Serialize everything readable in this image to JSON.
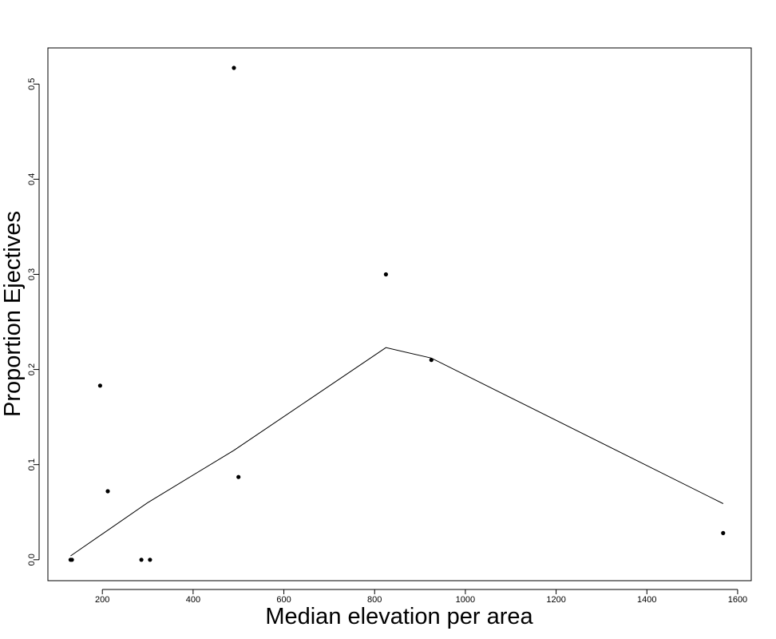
{
  "chart_data": {
    "type": "scatter",
    "title": "",
    "xlabel": "Median elevation per area",
    "ylabel": "Proportion Ejectives",
    "xlim": [
      80,
      1630
    ],
    "ylim": [
      -0.022,
      0.538
    ],
    "x_ticks": [
      200,
      400,
      600,
      800,
      1000,
      1200,
      1400,
      1600
    ],
    "y_ticks": [
      0.0,
      0.1,
      0.2,
      0.3,
      0.4,
      0.5
    ],
    "x_tick_labels": [
      "200",
      "400",
      "600",
      "800",
      "1000",
      "1200",
      "1400",
      "1600"
    ],
    "y_tick_labels": [
      "0.0",
      "0.1",
      "0.2",
      "0.3",
      "0.4",
      "0.5"
    ],
    "grid": false,
    "series": [
      {
        "type": "scatter",
        "points": [
          {
            "x": 130,
            "y": 0.0
          },
          {
            "x": 133,
            "y": 0.0
          },
          {
            "x": 195,
            "y": 0.183
          },
          {
            "x": 212,
            "y": 0.072
          },
          {
            "x": 286,
            "y": 0.0
          },
          {
            "x": 305,
            "y": 0.0
          },
          {
            "x": 490,
            "y": 0.517
          },
          {
            "x": 500,
            "y": 0.087
          },
          {
            "x": 825,
            "y": 0.3
          },
          {
            "x": 925,
            "y": 0.21
          },
          {
            "x": 1568,
            "y": 0.028
          }
        ]
      },
      {
        "type": "line",
        "points": [
          {
            "x": 130,
            "y": 0.004
          },
          {
            "x": 300,
            "y": 0.06
          },
          {
            "x": 490,
            "y": 0.115
          },
          {
            "x": 825,
            "y": 0.223
          },
          {
            "x": 925,
            "y": 0.212
          },
          {
            "x": 1568,
            "y": 0.059
          }
        ]
      }
    ]
  }
}
